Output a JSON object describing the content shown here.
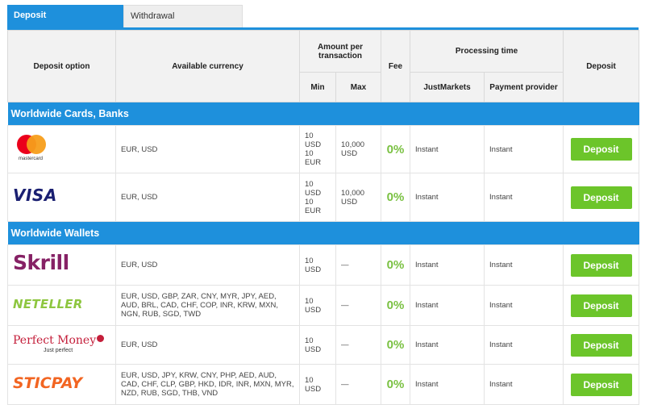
{
  "tabs": {
    "deposit": "Deposit",
    "withdrawal": "Withdrawal"
  },
  "headers": {
    "deposit_option": "Deposit option",
    "available_currency": "Available currency",
    "amount_per_transaction": "Amount per transaction",
    "min": "Min",
    "max": "Max",
    "fee": "Fee",
    "processing_time": "Processing time",
    "justmarkets": "JustMarkets",
    "payment_provider": "Payment provider",
    "deposit": "Deposit"
  },
  "sections": [
    {
      "title": "Worldwide Cards, Banks",
      "rows": [
        {
          "logo": "mastercard-logo",
          "logo_text": "mastercard",
          "currency": "EUR, USD",
          "min": "10 USD 10 EUR",
          "max": "10,000 USD",
          "fee": "0%",
          "justmarkets": "Instant",
          "provider": "Instant",
          "button": "Deposit"
        },
        {
          "logo": "visa-logo",
          "logo_text": "VISA",
          "currency": "EUR, USD",
          "min": "10 USD 10 EUR",
          "max": "10,000 USD",
          "fee": "0%",
          "justmarkets": "Instant",
          "provider": "Instant",
          "button": "Deposit"
        }
      ]
    },
    {
      "title": "Worldwide Wallets",
      "rows": [
        {
          "logo": "skrill-logo",
          "logo_text": "Skrill",
          "currency": "EUR, USD",
          "min": "10 USD",
          "max": "—",
          "fee": "0%",
          "justmarkets": "Instant",
          "provider": "Instant",
          "button": "Deposit"
        },
        {
          "logo": "neteller-logo",
          "logo_text": "NETELLER",
          "currency": "EUR, USD, GBP, ZAR, CNY, MYR, JPY, AED, AUD, BRL, CAD, CHF, COP, INR, KRW, MXN, NGN, RUB, SGD, TWD",
          "min": "10 USD",
          "max": "—",
          "fee": "0%",
          "justmarkets": "Instant",
          "provider": "Instant",
          "button": "Deposit"
        },
        {
          "logo": "perfect-money-logo",
          "logo_text": "Perfect Money",
          "logo_sub": "Just perfect",
          "currency": "EUR, USD",
          "min": "10 USD",
          "max": "—",
          "fee": "0%",
          "justmarkets": "Instant",
          "provider": "Instant",
          "button": "Deposit"
        },
        {
          "logo": "sticpay-logo",
          "logo_text": "STICPAY",
          "currency": "EUR, USD, JPY, KRW, CNY, PHP, AED, AUD, CAD, CHF, CLP, GBP, HKD, IDR, INR, MXN, MYR, NZD, RUB, SGD, THB, VND",
          "min": "10 USD",
          "max": "—",
          "fee": "0%",
          "justmarkets": "Instant",
          "provider": "Instant",
          "button": "Deposit"
        }
      ]
    }
  ],
  "colors": {
    "accent": "#1e90dc",
    "button": "#6cc52a",
    "fee": "#7ac142"
  }
}
